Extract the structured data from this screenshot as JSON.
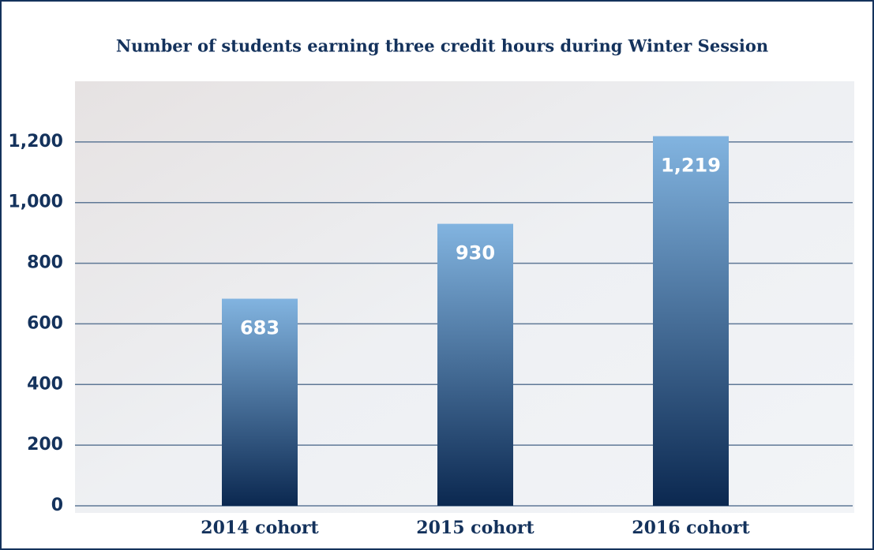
{
  "chart_data": {
    "type": "bar",
    "title": "Number of students earning three credit hours during Winter Session",
    "categories": [
      "2014 cohort",
      "2015 cohort",
      "2016 cohort"
    ],
    "values": [
      683,
      930,
      1219
    ],
    "value_labels": [
      "683",
      "930",
      "1,219"
    ],
    "color": "#0d2b55",
    "ylim": [
      0,
      1400
    ],
    "yticks": [
      0,
      200,
      400,
      600,
      800,
      {
        "value": 1000,
        "label": "1,000"
      },
      {
        "value": 1200,
        "label": "1,200"
      }
    ],
    "grid": true
  }
}
